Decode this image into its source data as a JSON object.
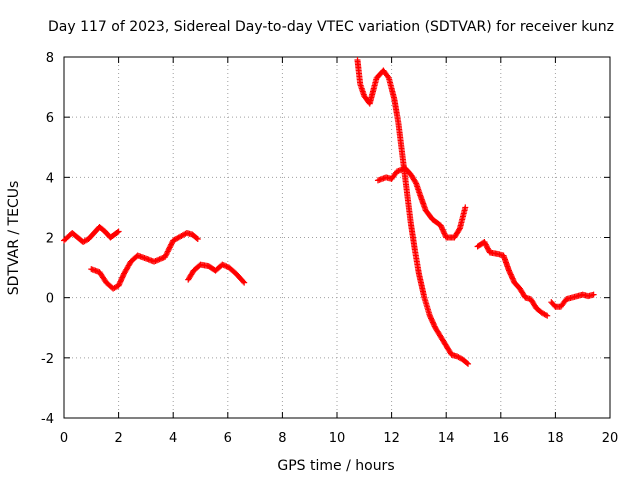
{
  "chart_data": {
    "type": "scatter",
    "title": "Day 117 of 2023, Sidereal Day-to-day VTEC variation (SDTVAR) for receiver kunz",
    "xlabel": "GPS time / hours",
    "ylabel": "SDTVAR / TECUs",
    "xlim": [
      0,
      20
    ],
    "ylim": [
      -4,
      8
    ],
    "xticks": [
      "0",
      "2",
      "4",
      "6",
      "8",
      "10",
      "12",
      "14",
      "16",
      "18",
      "20"
    ],
    "yticks": [
      "-4",
      "-2",
      "0",
      "2",
      "4",
      "6",
      "8"
    ],
    "grid": true,
    "marker": "+",
    "color": "#ff0000",
    "series": [
      {
        "name": "arc-1",
        "x": [
          0.0,
          0.3,
          0.5,
          0.7,
          0.9,
          1.1,
          1.3,
          1.5,
          1.7,
          1.85,
          2.0
        ],
        "y": [
          1.9,
          2.15,
          2.0,
          1.85,
          1.95,
          2.15,
          2.35,
          2.2,
          2.0,
          2.1,
          2.2
        ]
      },
      {
        "name": "arc-2",
        "x": [
          1.0,
          1.3,
          1.55,
          1.8,
          2.0,
          2.2,
          2.45,
          2.7,
          3.0,
          3.3,
          3.7,
          4.0,
          4.2,
          4.5,
          4.7,
          4.9
        ],
        "y": [
          0.95,
          0.85,
          0.5,
          0.3,
          0.4,
          0.8,
          1.2,
          1.4,
          1.3,
          1.2,
          1.35,
          1.9,
          2.0,
          2.15,
          2.1,
          1.95
        ]
      },
      {
        "name": "arc-3",
        "x": [
          4.55,
          4.75,
          5.0,
          5.3,
          5.55,
          5.8,
          6.05,
          6.3,
          6.6
        ],
        "y": [
          0.6,
          0.9,
          1.1,
          1.05,
          0.9,
          1.1,
          1.0,
          0.8,
          0.5
        ]
      },
      {
        "name": "arc-4",
        "x": [
          10.75,
          10.85,
          11.0,
          11.2,
          11.45,
          11.7,
          11.9,
          12.1,
          12.25,
          12.4,
          12.55,
          12.7,
          12.85,
          13.0,
          13.2,
          13.4,
          13.6,
          13.8,
          14.0,
          14.2,
          14.4,
          14.6,
          14.8
        ],
        "y": [
          7.9,
          7.1,
          6.7,
          6.45,
          7.3,
          7.55,
          7.3,
          6.6,
          5.8,
          4.7,
          3.6,
          2.5,
          1.6,
          0.8,
          0.0,
          -0.6,
          -1.0,
          -1.3,
          -1.6,
          -1.9,
          -1.95,
          -2.05,
          -2.2
        ]
      },
      {
        "name": "arc-5",
        "x": [
          11.5,
          11.8,
          12.0,
          12.2,
          12.5,
          12.7,
          12.9,
          13.05,
          13.25,
          13.5,
          13.8,
          14.0,
          14.3,
          14.5,
          14.7
        ],
        "y": [
          3.9,
          4.0,
          3.95,
          4.2,
          4.3,
          4.1,
          3.8,
          3.4,
          2.9,
          2.6,
          2.4,
          2.0,
          2.0,
          2.3,
          3.0
        ]
      },
      {
        "name": "arc-6",
        "x": [
          15.15,
          15.4,
          15.6,
          15.9,
          16.1,
          16.3,
          16.5,
          16.7,
          16.9,
          17.1,
          17.3,
          17.5,
          17.7
        ],
        "y": [
          1.7,
          1.85,
          1.5,
          1.45,
          1.4,
          0.9,
          0.5,
          0.3,
          0.0,
          -0.05,
          -0.35,
          -0.5,
          -0.6
        ]
      },
      {
        "name": "arc-7",
        "x": [
          17.85,
          18.0,
          18.2,
          18.4,
          18.6,
          18.8,
          19.0,
          19.2,
          19.4
        ],
        "y": [
          -0.15,
          -0.3,
          -0.3,
          -0.05,
          0.0,
          0.05,
          0.1,
          0.05,
          0.1
        ]
      }
    ]
  }
}
